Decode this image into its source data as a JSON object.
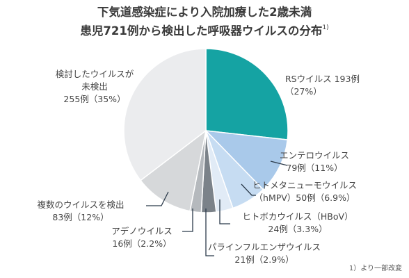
{
  "title_line1": "下気道感染症により入院加療した2歳未満",
  "title_line2": "患児721例から検出した呼吸器ウイルスの分布",
  "title_ref": "1)",
  "footnote": "1）より一部改変",
  "chart_data": {
    "type": "pie",
    "total": 721,
    "slices": [
      {
        "lines": [
          "RSウイルス 193例",
          "（27%）"
        ],
        "value": 193,
        "percent": 27,
        "color": "#15a3a3"
      },
      {
        "lines": [
          "エンテロウイルス",
          "79例（11%）"
        ],
        "value": 79,
        "percent": 11,
        "color": "#a9c9ea"
      },
      {
        "lines": [
          "ヒトメタニューモウイルス",
          "（hMPV）50例（6.9%）"
        ],
        "value": 50,
        "percent": 6.9,
        "color": "#c6dcf2"
      },
      {
        "lines": [
          "ヒトボカウイルス（HBoV）",
          "24例（3.3%）"
        ],
        "value": 24,
        "percent": 3.3,
        "color": "#e1ebf6"
      },
      {
        "lines": [
          "パラインフルエンザウイルス",
          "21例（2.9%）"
        ],
        "value": 21,
        "percent": 2.9,
        "color": "#7b8289"
      },
      {
        "lines": [
          "アデノウイルス",
          "16例（2.2%）"
        ],
        "value": 16,
        "percent": 2.2,
        "color": "#b5b9bd"
      },
      {
        "lines": [
          "複数のウイルスを検出",
          "83例（12%）"
        ],
        "value": 83,
        "percent": 12,
        "color": "#d6d8da"
      },
      {
        "lines": [
          "検討したウイルスが",
          "未検出",
          "255例（35%）"
        ],
        "value": 255,
        "percent": 35,
        "color": "#ebecee"
      }
    ]
  }
}
